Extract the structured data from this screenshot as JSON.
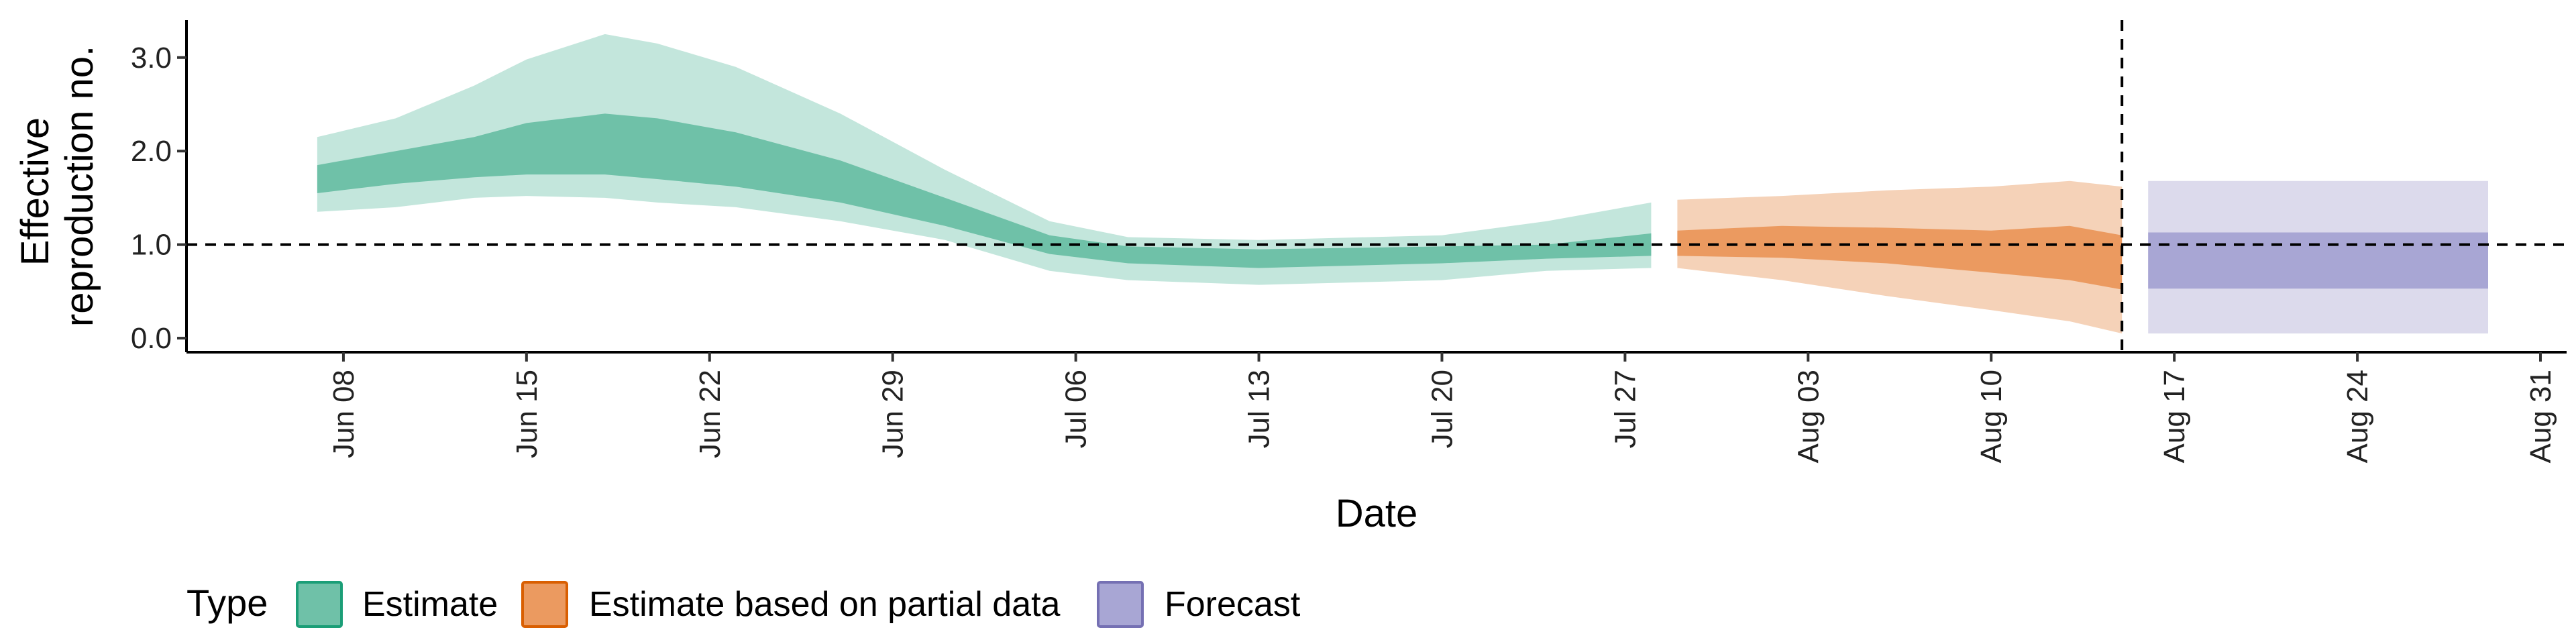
{
  "chart_data": {
    "type": "area",
    "xlabel": "Date",
    "ylabel_lines": [
      "Effective",
      "reproduction no."
    ],
    "x_range": [
      "2020-06-02",
      "2020-09-01"
    ],
    "y_range": [
      -0.15,
      3.4
    ],
    "y_ticks": [
      {
        "value": 0,
        "label": "0.0"
      },
      {
        "value": 1,
        "label": "1.0"
      },
      {
        "value": 2,
        "label": "2.0"
      },
      {
        "value": 3,
        "label": "3.0"
      }
    ],
    "x_ticks": [
      {
        "date": "2020-06-08",
        "label": "Jun 08"
      },
      {
        "date": "2020-06-15",
        "label": "Jun 15"
      },
      {
        "date": "2020-06-22",
        "label": "Jun 22"
      },
      {
        "date": "2020-06-29",
        "label": "Jun 29"
      },
      {
        "date": "2020-07-06",
        "label": "Jul 06"
      },
      {
        "date": "2020-07-13",
        "label": "Jul 13"
      },
      {
        "date": "2020-07-20",
        "label": "Jul 20"
      },
      {
        "date": "2020-07-27",
        "label": "Jul 27"
      },
      {
        "date": "2020-08-03",
        "label": "Aug 03"
      },
      {
        "date": "2020-08-10",
        "label": "Aug 10"
      },
      {
        "date": "2020-08-17",
        "label": "Aug 17"
      },
      {
        "date": "2020-08-24",
        "label": "Aug 24"
      },
      {
        "date": "2020-08-31",
        "label": "Aug 31"
      }
    ],
    "reference_line_y": 1.0,
    "vertical_line_date": "2020-08-15",
    "legend": {
      "title": "Type",
      "position": "bottom",
      "items": [
        {
          "label": "Estimate",
          "fill": "#6fc1a8",
          "stroke": "#1b9e77"
        },
        {
          "label": "Estimate based on partial data",
          "fill": "#eb9a60",
          "stroke": "#d95f02"
        },
        {
          "label": "Forecast",
          "fill": "#a8a6d4",
          "stroke": "#7570b3"
        }
      ]
    },
    "series": [
      {
        "type_label": "Estimate",
        "outer_color": "#c3e6dc",
        "inner_color": "#6fc1a8",
        "points": [
          {
            "date": "2020-06-07",
            "lower90": 1.35,
            "lower50": 1.55,
            "upper50": 1.85,
            "upper90": 2.15
          },
          {
            "date": "2020-06-10",
            "lower90": 1.4,
            "lower50": 1.65,
            "upper50": 2.0,
            "upper90": 2.35
          },
          {
            "date": "2020-06-13",
            "lower90": 1.5,
            "lower50": 1.72,
            "upper50": 2.15,
            "upper90": 2.7
          },
          {
            "date": "2020-06-15",
            "lower90": 1.52,
            "lower50": 1.75,
            "upper50": 2.3,
            "upper90": 2.98
          },
          {
            "date": "2020-06-18",
            "lower90": 1.5,
            "lower50": 1.75,
            "upper50": 2.4,
            "upper90": 3.25
          },
          {
            "date": "2020-06-20",
            "lower90": 1.45,
            "lower50": 1.7,
            "upper50": 2.35,
            "upper90": 3.15
          },
          {
            "date": "2020-06-23",
            "lower90": 1.4,
            "lower50": 1.62,
            "upper50": 2.2,
            "upper90": 2.9
          },
          {
            "date": "2020-06-27",
            "lower90": 1.25,
            "lower50": 1.45,
            "upper50": 1.9,
            "upper90": 2.4
          },
          {
            "date": "2020-07-01",
            "lower90": 1.05,
            "lower50": 1.2,
            "upper50": 1.5,
            "upper90": 1.8
          },
          {
            "date": "2020-07-05",
            "lower90": 0.72,
            "lower50": 0.9,
            "upper50": 1.1,
            "upper90": 1.25
          },
          {
            "date": "2020-07-08",
            "lower90": 0.62,
            "lower50": 0.8,
            "upper50": 0.98,
            "upper90": 1.08
          },
          {
            "date": "2020-07-13",
            "lower90": 0.57,
            "lower50": 0.75,
            "upper50": 0.95,
            "upper90": 1.05
          },
          {
            "date": "2020-07-20",
            "lower90": 0.62,
            "lower50": 0.8,
            "upper50": 0.98,
            "upper90": 1.1
          },
          {
            "date": "2020-07-24",
            "lower90": 0.72,
            "lower50": 0.85,
            "upper50": 1.0,
            "upper90": 1.25
          },
          {
            "date": "2020-07-28",
            "lower90": 0.75,
            "lower50": 0.88,
            "upper50": 1.12,
            "upper90": 1.45
          }
        ]
      },
      {
        "type_label": "Estimate based on partial data",
        "outer_color": "#f5d2b8",
        "inner_color": "#eb9a60",
        "points": [
          {
            "date": "2020-07-29",
            "lower90": 0.75,
            "lower50": 0.88,
            "upper50": 1.15,
            "upper90": 1.48
          },
          {
            "date": "2020-08-02",
            "lower90": 0.62,
            "lower50": 0.86,
            "upper50": 1.2,
            "upper90": 1.52
          },
          {
            "date": "2020-08-06",
            "lower90": 0.45,
            "lower50": 0.8,
            "upper50": 1.18,
            "upper90": 1.58
          },
          {
            "date": "2020-08-10",
            "lower90": 0.3,
            "lower50": 0.7,
            "upper50": 1.15,
            "upper90": 1.62
          },
          {
            "date": "2020-08-13",
            "lower90": 0.18,
            "lower50": 0.62,
            "upper50": 1.2,
            "upper90": 1.68
          },
          {
            "date": "2020-08-15",
            "lower90": 0.05,
            "lower50": 0.52,
            "upper50": 1.1,
            "upper90": 1.62
          }
        ]
      },
      {
        "type_label": "Forecast",
        "outer_color": "#dcdaec",
        "inner_color": "#a8a6d4",
        "points": [
          {
            "date": "2020-08-16",
            "lower90": 0.05,
            "lower50": 0.53,
            "upper50": 1.13,
            "upper90": 1.68
          },
          {
            "date": "2020-08-29",
            "lower90": 0.05,
            "lower50": 0.53,
            "upper50": 1.13,
            "upper90": 1.68
          }
        ]
      }
    ]
  }
}
